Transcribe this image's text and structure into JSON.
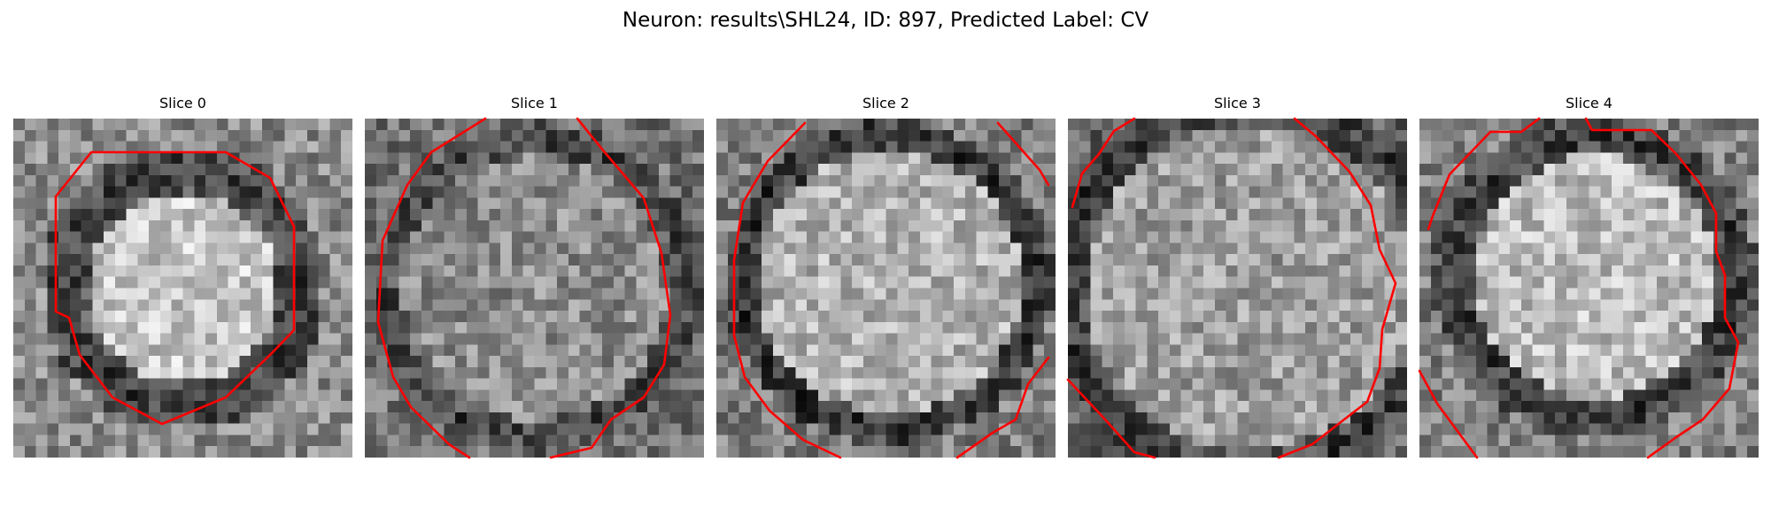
{
  "figure": {
    "suptitle": "Neuron: results\\SHL24, ID: 897, Predicted Label: CV"
  },
  "panels": [
    {
      "title": "Slice 0",
      "colormap": "grayscale",
      "contour_color": "#ff0000"
    },
    {
      "title": "Slice 1",
      "colormap": "grayscale",
      "contour_color": "#ff0000"
    },
    {
      "title": "Slice 2",
      "colormap": "grayscale",
      "contour_color": "#ff0000"
    },
    {
      "title": "Slice 3",
      "colormap": "grayscale",
      "contour_color": "#ff0000"
    },
    {
      "title": "Slice 4",
      "colormap": "grayscale",
      "contour_color": "#ff0000"
    }
  ]
}
